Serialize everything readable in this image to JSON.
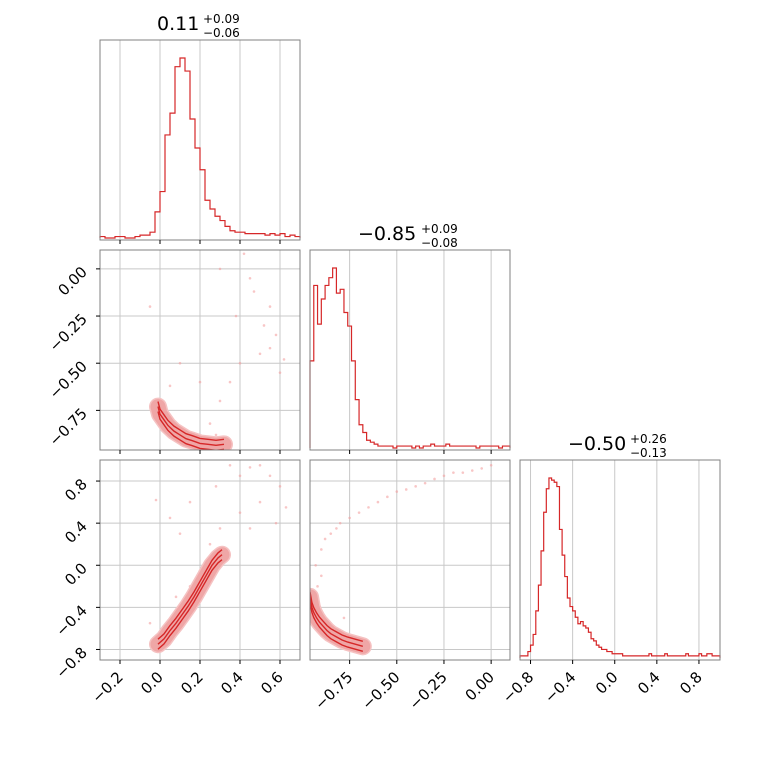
{
  "colors": {
    "accent": "#d62728",
    "grid": "#c8c8c8",
    "frame": "#808080",
    "contour_fill": "#f5c2c2",
    "scatter": "#f4a0a0"
  },
  "chart_data": {
    "type": "corner",
    "grid": true,
    "parameters": [
      {
        "median": "0.11",
        "upper": "+0.09",
        "lower": "−0.06",
        "range": [
          -0.3,
          0.7
        ]
      },
      {
        "median": "−0.85",
        "upper": "+0.09",
        "lower": "−0.08",
        "range": [
          -0.96,
          0.1
        ]
      },
      {
        "median": "−0.50",
        "upper": "+0.26",
        "lower": "−0.13",
        "range": [
          -0.9,
          1.0
        ]
      }
    ],
    "histograms": [
      {
        "bin_width": 0.025,
        "x": [
          -0.3,
          -0.275,
          -0.25,
          -0.225,
          -0.2,
          -0.175,
          -0.15,
          -0.125,
          -0.1,
          -0.075,
          -0.05,
          -0.025,
          0.0,
          0.025,
          0.05,
          0.075,
          0.1,
          0.125,
          0.15,
          0.175,
          0.2,
          0.225,
          0.25,
          0.275,
          0.3,
          0.325,
          0.35,
          0.375,
          0.4,
          0.425,
          0.45,
          0.475,
          0.5,
          0.525,
          0.55,
          0.575,
          0.6,
          0.625,
          0.65,
          0.675
        ],
        "counts": [
          1,
          0,
          0,
          1,
          1,
          0,
          0,
          1,
          2,
          2,
          4,
          18,
          32,
          71,
          86,
          118,
          124,
          115,
          82,
          62,
          47,
          26,
          20,
          15,
          12,
          8,
          5,
          4,
          4,
          3,
          3,
          3,
          3,
          2,
          3,
          2,
          3,
          1,
          2,
          1
        ]
      },
      {
        "bin_width": 0.02,
        "x": [
          -0.96,
          -0.94,
          -0.92,
          -0.9,
          -0.88,
          -0.86,
          -0.84,
          -0.82,
          -0.8,
          -0.78,
          -0.76,
          -0.74,
          -0.72,
          -0.7,
          -0.68,
          -0.66,
          -0.64,
          -0.62,
          -0.6,
          -0.58,
          -0.56,
          -0.54,
          -0.52,
          -0.5,
          -0.48,
          -0.46,
          -0.44,
          -0.42,
          -0.4,
          -0.38,
          -0.36,
          -0.34,
          -0.32,
          -0.3,
          -0.28,
          -0.26,
          -0.24,
          -0.22,
          -0.2,
          -0.18,
          -0.16,
          -0.14,
          -0.12,
          -0.1,
          -0.08,
          -0.06,
          -0.04,
          -0.02,
          0.0,
          0.02,
          0.04,
          0.06,
          0.08
        ],
        "counts": [
          45,
          84,
          64,
          77,
          84,
          88,
          93,
          80,
          82,
          70,
          63,
          45,
          25,
          12,
          8,
          4,
          3,
          2,
          1,
          1,
          1,
          1,
          0,
          1,
          1,
          1,
          1,
          0,
          1,
          0,
          1,
          1,
          2,
          1,
          1,
          1,
          2,
          1,
          1,
          1,
          1,
          1,
          1,
          1,
          0,
          1,
          1,
          1,
          1,
          1,
          0,
          1,
          1
        ]
      },
      {
        "bin_width": 0.025,
        "x": [
          -0.9,
          -0.875,
          -0.85,
          -0.825,
          -0.8,
          -0.775,
          -0.75,
          -0.725,
          -0.7,
          -0.675,
          -0.65,
          -0.625,
          -0.6,
          -0.575,
          -0.55,
          -0.525,
          -0.5,
          -0.475,
          -0.45,
          -0.425,
          -0.4,
          -0.375,
          -0.35,
          -0.325,
          -0.3,
          -0.275,
          -0.25,
          -0.225,
          -0.2,
          -0.175,
          -0.15,
          -0.125,
          -0.1,
          -0.075,
          -0.05,
          -0.025,
          0.0,
          0.025,
          0.05,
          0.075,
          0.1,
          0.125,
          0.15,
          0.175,
          0.2,
          0.225,
          0.25,
          0.275,
          0.3,
          0.325,
          0.35,
          0.375,
          0.4,
          0.425,
          0.45,
          0.475,
          0.5,
          0.525,
          0.55,
          0.575,
          0.6,
          0.625,
          0.65,
          0.675,
          0.7,
          0.725,
          0.75,
          0.775,
          0.8,
          0.825,
          0.85,
          0.875,
          0.9,
          0.925,
          0.95,
          0.975
        ],
        "counts": [
          1,
          1,
          1,
          3,
          6,
          11,
          22,
          34,
          50,
          68,
          79,
          84,
          83,
          82,
          80,
          60,
          48,
          38,
          28,
          24,
          22,
          19,
          16,
          17,
          15,
          14,
          12,
          9,
          8,
          6,
          5,
          4,
          4,
          3,
          3,
          2,
          2,
          2,
          2,
          1,
          1,
          1,
          1,
          1,
          1,
          1,
          1,
          1,
          1,
          2,
          1,
          1,
          1,
          1,
          1,
          2,
          1,
          1,
          1,
          1,
          1,
          1,
          1,
          2,
          1,
          1,
          1,
          1,
          2,
          1,
          1,
          2,
          2,
          1,
          1,
          1
        ]
      }
    ],
    "tick_labels": {
      "p1_x": [
        "−0.2",
        "0.0",
        "0.2",
        "0.4",
        "0.6"
      ],
      "p2_x": [
        "−0.75",
        "−0.50",
        "−0.25",
        "0.00"
      ],
      "p3_x": [
        "−0.8",
        "−0.4",
        "0.0",
        "0.4",
        "0.8"
      ],
      "p2_y": [
        "0.00",
        "−0.25",
        "−0.50",
        "−0.75"
      ],
      "p3_y": [
        "0.8",
        "0.4",
        "0.0",
        "−0.4",
        "−0.8"
      ]
    },
    "tick_values": {
      "p1": [
        -0.2,
        0.0,
        0.2,
        0.4,
        0.6
      ],
      "p2": [
        -0.75,
        -0.5,
        -0.25,
        0.0
      ],
      "p3": [
        -0.8,
        -0.4,
        0.0,
        0.4,
        0.8
      ]
    },
    "joint_samples": {
      "p1_p2": [
        [
          0.3,
          0.0
        ],
        [
          0.45,
          -0.05
        ],
        [
          0.55,
          -0.2
        ],
        [
          0.58,
          -0.35
        ],
        [
          0.5,
          -0.45
        ],
        [
          0.4,
          -0.5
        ],
        [
          0.35,
          -0.6
        ],
        [
          0.3,
          -0.7
        ],
        [
          0.25,
          -0.82
        ],
        [
          0.1,
          -0.5
        ],
        [
          0.05,
          -0.62
        ],
        [
          -0.05,
          -0.2
        ],
        [
          0.6,
          -0.55
        ],
        [
          0.52,
          -0.3
        ],
        [
          0.28,
          -0.88
        ],
        [
          0.2,
          -0.6
        ],
        [
          -0.03,
          -0.78
        ],
        [
          0.0,
          -0.82
        ],
        [
          0.06,
          -0.9
        ],
        [
          0.12,
          -0.93
        ],
        [
          0.22,
          -0.92
        ],
        [
          0.42,
          0.08
        ],
        [
          0.47,
          -0.12
        ],
        [
          0.38,
          -0.25
        ],
        [
          0.55,
          -0.42
        ],
        [
          0.62,
          -0.48
        ]
      ],
      "p1_p3": [
        [
          0.35,
          0.95
        ],
        [
          0.45,
          0.93
        ],
        [
          0.55,
          0.85
        ],
        [
          0.6,
          0.75
        ],
        [
          0.5,
          0.6
        ],
        [
          0.4,
          0.5
        ],
        [
          0.3,
          0.35
        ],
        [
          0.25,
          0.2
        ],
        [
          0.1,
          0.3
        ],
        [
          0.05,
          0.45
        ],
        [
          0.2,
          -0.05
        ],
        [
          0.15,
          -0.2
        ],
        [
          -0.05,
          -0.55
        ],
        [
          0.0,
          -0.7
        ],
        [
          0.15,
          0.6
        ],
        [
          0.28,
          0.75
        ],
        [
          0.4,
          0.85
        ],
        [
          0.63,
          0.55
        ],
        [
          -0.02,
          0.62
        ],
        [
          0.08,
          -0.3
        ],
        [
          0.45,
          0.35
        ],
        [
          0.5,
          0.95
        ],
        [
          0.58,
          0.4
        ]
      ],
      "p2_p3": [
        [
          -0.9,
          -0.1
        ],
        [
          -0.92,
          -0.2
        ],
        [
          -0.94,
          -0.3
        ],
        [
          -0.93,
          0.0
        ],
        [
          -0.9,
          0.15
        ],
        [
          -0.85,
          0.3
        ],
        [
          -0.8,
          0.4
        ],
        [
          -0.7,
          0.5
        ],
        [
          -0.6,
          0.6
        ],
        [
          -0.5,
          0.7
        ],
        [
          -0.4,
          0.75
        ],
        [
          -0.3,
          0.82
        ],
        [
          -0.2,
          0.88
        ],
        [
          -0.1,
          0.9
        ],
        [
          0.0,
          0.95
        ],
        [
          -0.75,
          0.45
        ],
        [
          -0.65,
          0.55
        ],
        [
          -0.55,
          0.65
        ],
        [
          -0.45,
          0.72
        ],
        [
          -0.35,
          0.78
        ],
        [
          -0.25,
          0.85
        ],
        [
          -0.15,
          0.88
        ],
        [
          -0.05,
          0.92
        ],
        [
          -0.88,
          0.25
        ],
        [
          -0.82,
          0.35
        ],
        [
          -0.78,
          -0.5
        ]
      ]
    },
    "joint_ridges": {
      "p1_p2": [
        [
          -0.01,
          -0.73
        ],
        [
          0.0,
          -0.77
        ],
        [
          0.02,
          -0.8
        ],
        [
          0.04,
          -0.83
        ],
        [
          0.07,
          -0.86
        ],
        [
          0.1,
          -0.88
        ],
        [
          0.13,
          -0.9
        ],
        [
          0.16,
          -0.91
        ],
        [
          0.2,
          -0.925
        ],
        [
          0.24,
          -0.93
        ],
        [
          0.28,
          -0.935
        ],
        [
          0.32,
          -0.93
        ]
      ],
      "p1_p3": [
        [
          -0.01,
          -0.75
        ],
        [
          0.02,
          -0.7
        ],
        [
          0.05,
          -0.62
        ],
        [
          0.08,
          -0.55
        ],
        [
          0.11,
          -0.47
        ],
        [
          0.14,
          -0.39
        ],
        [
          0.17,
          -0.3
        ],
        [
          0.2,
          -0.2
        ],
        [
          0.23,
          -0.1
        ],
        [
          0.26,
          0.0
        ],
        [
          0.29,
          0.07
        ],
        [
          0.31,
          0.1
        ]
      ],
      "p2_p3": [
        [
          -0.96,
          -0.3
        ],
        [
          -0.955,
          -0.35
        ],
        [
          -0.95,
          -0.4
        ],
        [
          -0.94,
          -0.45
        ],
        [
          -0.925,
          -0.5
        ],
        [
          -0.91,
          -0.54
        ],
        [
          -0.89,
          -0.58
        ],
        [
          -0.87,
          -0.62
        ],
        [
          -0.85,
          -0.65
        ],
        [
          -0.82,
          -0.68
        ],
        [
          -0.79,
          -0.71
        ],
        [
          -0.76,
          -0.73
        ],
        [
          -0.72,
          -0.75
        ],
        [
          -0.68,
          -0.77
        ]
      ]
    }
  }
}
